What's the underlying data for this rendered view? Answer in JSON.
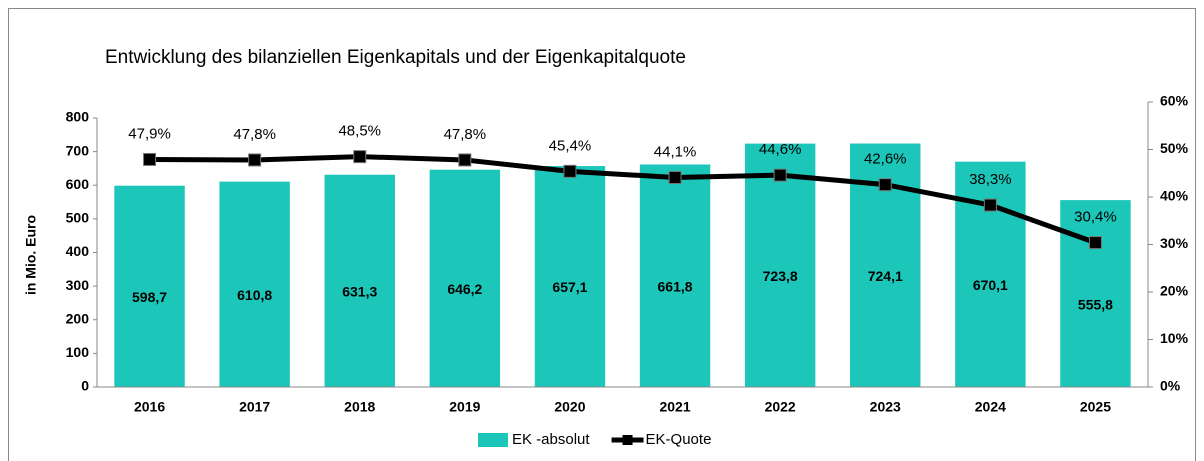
{
  "chart_data": {
    "type": "combo",
    "title": "Entwicklung des bilanziellen Eigenkapitals und der Eigenkapitalquote",
    "ylabel": "in Mio. Euro",
    "categories": [
      "2016",
      "2017",
      "2018",
      "2019",
      "2020",
      "2021",
      "2022",
      "2023",
      "2024",
      "2025"
    ],
    "series": [
      {
        "name": "EK -absolut",
        "type": "bar",
        "color": "#1cc7b9",
        "values": [
          598.7,
          610.8,
          631.3,
          646.2,
          657.1,
          661.8,
          723.8,
          724.1,
          670.1,
          555.8
        ],
        "value_labels": [
          "598,7",
          "610,8",
          "631,3",
          "646,2",
          "657,1",
          "661,8",
          "723,8",
          "724,1",
          "670,1",
          "555,8"
        ]
      },
      {
        "name": "EK-Quote",
        "type": "line",
        "axis": "y2",
        "color": "#000000",
        "values": [
          47.9,
          47.8,
          48.5,
          47.8,
          45.4,
          44.1,
          44.6,
          42.6,
          38.3,
          30.4
        ],
        "value_labels": [
          "47,9%",
          "47,8%",
          "48,5%",
          "47,8%",
          "45,4%",
          "44,1%",
          "44,6%",
          "42,6%",
          "38,3%",
          "30,4%"
        ]
      }
    ],
    "ylim": [
      0,
      800
    ],
    "yticks": [
      0,
      100,
      200,
      300,
      400,
      500,
      600,
      700,
      800
    ],
    "y2lim": [
      0,
      60
    ],
    "y2ticks": [
      {
        "value": 0,
        "label": "0%"
      },
      {
        "value": 10,
        "label": "10%"
      },
      {
        "value": 20,
        "label": "20%"
      },
      {
        "value": 30,
        "label": "30%"
      },
      {
        "value": 40,
        "label": "40%"
      },
      {
        "value": 50,
        "label": "50%"
      },
      {
        "value": 60,
        "label": "60%"
      }
    ],
    "grid": false,
    "legend": "bottom"
  }
}
